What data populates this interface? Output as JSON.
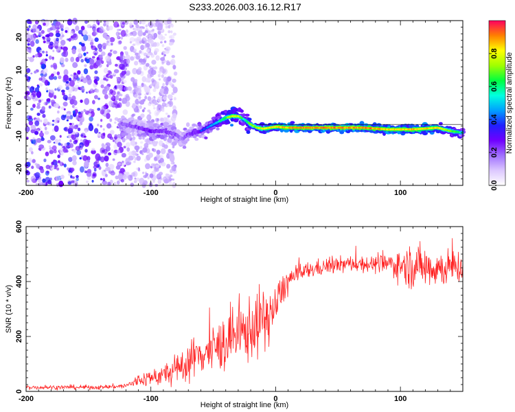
{
  "title": "S233.2026.003.16.12.R17",
  "chart_data": [
    {
      "type": "heatmap",
      "xlabel": "Height of straight line (km)",
      "ylabel": "Frequency (Hz)",
      "xlim": [
        -200,
        150
      ],
      "ylim": [
        -25,
        25
      ],
      "xticks": [
        -200,
        -100,
        0,
        100
      ],
      "yticks": [
        -20,
        -10,
        0,
        10,
        20
      ],
      "colorbar": {
        "label": "Normalized spectral amplitude",
        "range": [
          0,
          1
        ],
        "ticks": [
          0.0,
          0.2,
          0.4,
          0.6,
          0.8
        ],
        "tick_labels": [
          "0.0",
          "0.2",
          "0.4",
          "0.6",
          "0.8"
        ],
        "colormap": [
          "#ffffff",
          "#dcc8ff",
          "#a070ff",
          "#7000ff",
          "#2020ff",
          "#00a0ff",
          "#00ffe0",
          "#00ff40",
          "#a0ff00",
          "#ffff00",
          "#ff8000",
          "#ff0060"
        ]
      },
      "ridge": {
        "x": [
          -120,
          -110,
          -100,
          -90,
          -80,
          -75,
          -70,
          -60,
          -50,
          -40,
          -35,
          -30,
          -25,
          -20,
          -15,
          -10,
          0,
          10,
          30,
          50,
          70,
          90,
          110,
          130,
          140,
          150
        ],
        "frequency": [
          -6.5,
          -7.5,
          -8.5,
          -8.5,
          -9.5,
          -11,
          -9.5,
          -8.5,
          -6.5,
          -4.5,
          -4,
          -4,
          -5,
          -6.5,
          -7.5,
          -7.8,
          -7.2,
          -7.5,
          -7.5,
          -7.5,
          -7.5,
          -8,
          -8,
          -7.5,
          -8.5,
          -9
        ],
        "amplitude": [
          0.25,
          0.3,
          0.35,
          0.3,
          0.28,
          0.22,
          0.3,
          0.35,
          0.45,
          0.65,
          0.8,
          0.75,
          0.55,
          0.7,
          0.75,
          0.8,
          0.85,
          0.88,
          0.9,
          0.9,
          0.9,
          0.85,
          0.85,
          0.82,
          0.7,
          0.55
        ]
      },
      "noise_region": {
        "x": [
          -200,
          -120
        ],
        "frequency": [
          -25,
          25
        ]
      }
    },
    {
      "type": "line",
      "xlabel": "Height of straight line (km)",
      "ylabel": "SNR (10 * v/v)",
      "xlim": [
        -200,
        150
      ],
      "ylim": [
        0,
        600
      ],
      "xticks": [
        -200,
        -100,
        0,
        100
      ],
      "yticks": [
        0,
        200,
        400,
        600
      ],
      "color": "#ff2020",
      "series": [
        {
          "name": "SNR",
          "x": [
            -200,
            -180,
            -160,
            -140,
            -120,
            -110,
            -100,
            -90,
            -80,
            -70,
            -60,
            -50,
            -40,
            -30,
            -20,
            -10,
            -5,
            0,
            5,
            10,
            15,
            20,
            30,
            40,
            50,
            60,
            70,
            80,
            90,
            100,
            110,
            120,
            130,
            140,
            150
          ],
          "mean": [
            15,
            15,
            15,
            15,
            20,
            40,
            50,
            60,
            75,
            110,
            140,
            150,
            180,
            200,
            230,
            260,
            280,
            300,
            370,
            400,
            420,
            430,
            445,
            455,
            460,
            465,
            465,
            462,
            465,
            460,
            455,
            455,
            450,
            450,
            455
          ],
          "noise": [
            8,
            8,
            8,
            8,
            10,
            25,
            30,
            40,
            55,
            70,
            80,
            90,
            100,
            110,
            120,
            120,
            100,
            80,
            60,
            50,
            40,
            35,
            30,
            30,
            30,
            30,
            30,
            30,
            40,
            60,
            80,
            80,
            70,
            70,
            60
          ]
        }
      ]
    }
  ]
}
